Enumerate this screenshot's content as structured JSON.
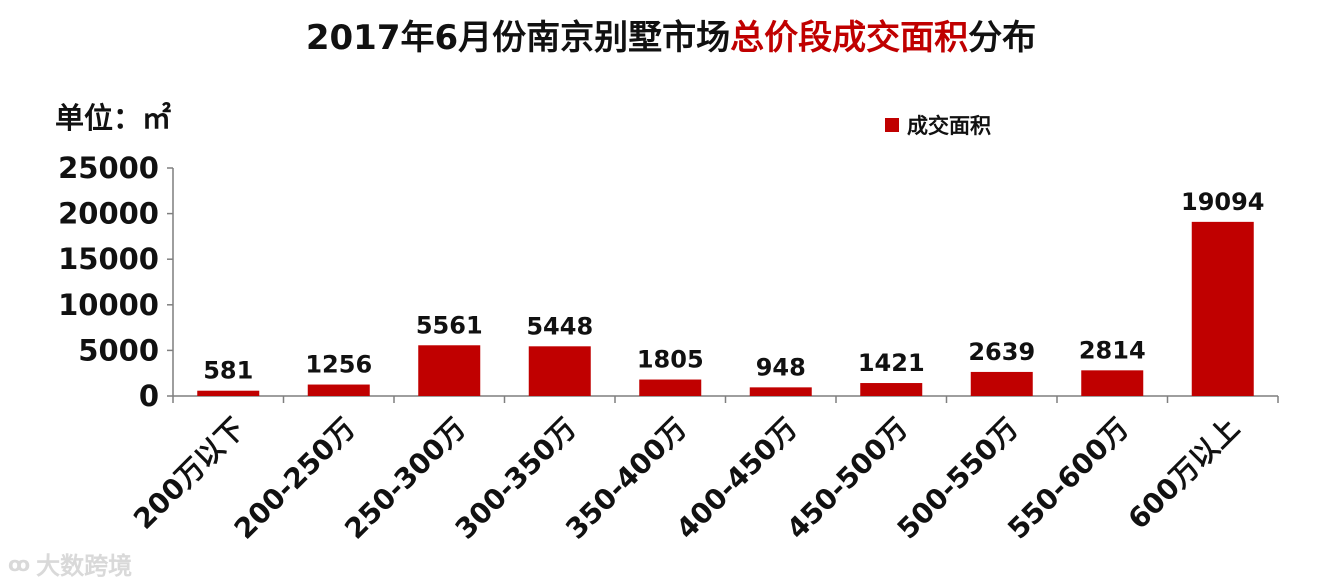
{
  "title": {
    "prefix": "2017年6月份南京别墅市场",
    "highlight": "总价段成交面积",
    "suffix": "分布"
  },
  "unit_label": "单位：㎡",
  "watermark": {
    "text": "大数跨境",
    "icon": "loop-logo-icon"
  },
  "colors": {
    "bar": "#c00000",
    "highlight": "#c00000",
    "axis": "#7f7f7f"
  },
  "chart_data": {
    "type": "bar",
    "title": "2017年6月份南京别墅市场总价段成交面积分布",
    "ylabel": "单位：㎡",
    "xlabel": "",
    "ylim": [
      0,
      25000
    ],
    "yticks": [
      0,
      5000,
      10000,
      15000,
      20000,
      25000
    ],
    "grid": false,
    "legend_position": "top-right",
    "categories": [
      "200万以下",
      "200-250万",
      "250-300万",
      "300-350万",
      "350-400万",
      "400-450万",
      "450-500万",
      "500-550万",
      "550-600万",
      "600万以上"
    ],
    "series": [
      {
        "name": "成交面积",
        "values": [
          581,
          1256,
          5561,
          5448,
          1805,
          948,
          1421,
          2639,
          2814,
          19094
        ]
      }
    ]
  }
}
